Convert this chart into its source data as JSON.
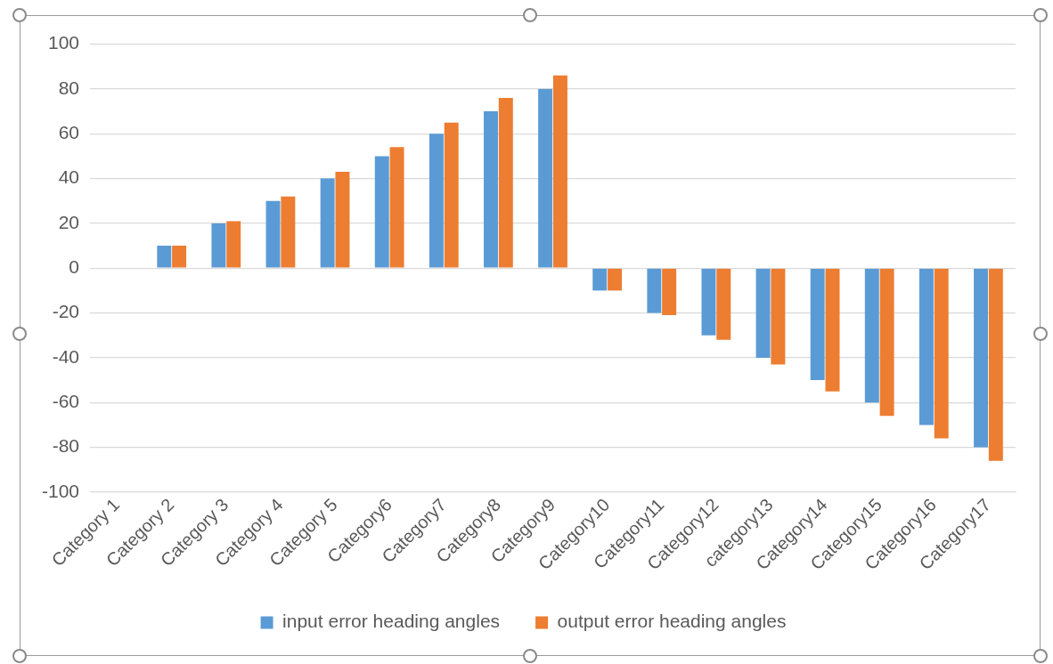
{
  "chart_data": {
    "type": "bar",
    "categories": [
      "Category 1",
      "Category 2",
      "Category 3",
      "Category 4",
      "Category 5",
      "Category6",
      "Category7",
      "Category8",
      "Category9",
      "Category10",
      "Category11",
      "Category12",
      "category13",
      "Category14",
      "Category15",
      "Category16",
      "Category17"
    ],
    "series": [
      {
        "name": "input error heading angles",
        "color": "#5b9bd5",
        "values": [
          0,
          10,
          20,
          30,
          40,
          50,
          60,
          70,
          80,
          -10,
          -20,
          -30,
          -40,
          -50,
          -60,
          -70,
          -80
        ]
      },
      {
        "name": "output error heading angles",
        "color": "#ed7d31",
        "values": [
          0,
          10,
          21,
          32,
          43,
          54,
          65,
          76,
          86,
          -10,
          -21,
          -32,
          -43,
          -55,
          -66,
          -76,
          -86
        ]
      }
    ],
    "ylim": [
      -100,
      100
    ],
    "yticks": [
      -100,
      -80,
      -60,
      -40,
      -20,
      0,
      20,
      40,
      60,
      80,
      100
    ],
    "grid": "y",
    "legend": "bottom"
  }
}
